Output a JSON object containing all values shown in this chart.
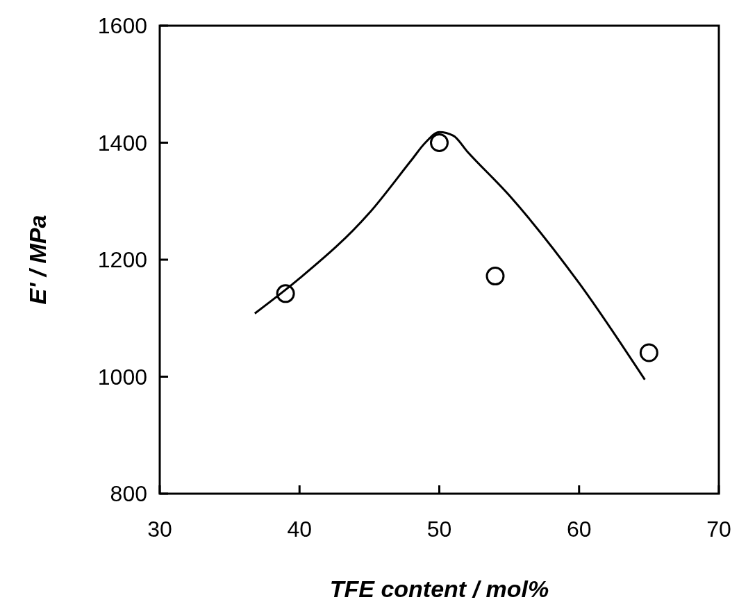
{
  "chart_data": {
    "type": "scatter",
    "xlabel": "TFE content   /   mol%",
    "ylabel": "E'  / MPa",
    "xlim": [
      30,
      70
    ],
    "xticks": [
      30,
      40,
      50,
      60,
      70
    ],
    "ylim": [
      800,
      1600
    ],
    "yticks": [
      800,
      1000,
      1200,
      1400,
      1600
    ],
    "grid": false,
    "series": [
      {
        "color": "#000000",
        "marker": "circle",
        "x": [
          39,
          50,
          54,
          65
        ],
        "values": [
          1142,
          1400,
          1172,
          1041
        ]
      },
      {
        "type": "line",
        "color": "#000000",
        "x": [
          36.8,
          40,
          45,
          48,
          49,
          50,
          51,
          52,
          55,
          60,
          64.7
        ],
        "values": [
          1108,
          1168,
          1280,
          1370,
          1400,
          1418,
          1412,
          1385,
          1310,
          1160,
          995
        ]
      }
    ]
  }
}
